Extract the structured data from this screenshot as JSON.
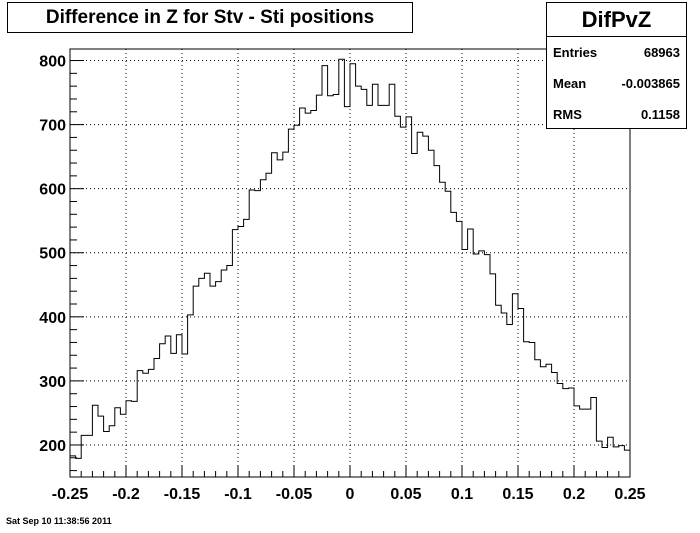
{
  "title": "Difference in Z for Stv - Sti positions",
  "stats": {
    "name": "DifPvZ",
    "entries_label": "Entries",
    "entries_value": "68963",
    "mean_label": "Mean",
    "mean_value": "-0.003865",
    "rms_label": "RMS",
    "rms_value": "0.1158"
  },
  "timestamp": "Sat Sep 10 11:38:56 2011",
  "chart_data": {
    "type": "histogram",
    "xlim": [
      -0.25,
      0.25
    ],
    "ylim": [
      150,
      818
    ],
    "bin_width": 0.005,
    "x_ticks": [
      -0.25,
      -0.2,
      -0.15,
      -0.1,
      -0.05,
      0,
      0.05,
      0.1,
      0.15,
      0.2,
      0.25
    ],
    "x_tick_labels": [
      "-0.25",
      "-0.2",
      "-0.15",
      "-0.1",
      "-0.05",
      "0",
      "0.05",
      "0.1",
      "0.15",
      "0.2",
      "0.25"
    ],
    "y_ticks": [
      200,
      300,
      400,
      500,
      600,
      700,
      800
    ],
    "y_tick_labels": [
      "200",
      "300",
      "400",
      "500",
      "600",
      "700",
      "800"
    ],
    "grid": true,
    "values": [
      183,
      179,
      215,
      215,
      262,
      245,
      221,
      230,
      258,
      248,
      269,
      268,
      316,
      312,
      318,
      335,
      358,
      370,
      343,
      372,
      342,
      403,
      448,
      460,
      468,
      448,
      455,
      473,
      480,
      536,
      541,
      552,
      598,
      597,
      614,
      624,
      656,
      645,
      657,
      693,
      699,
      726,
      718,
      722,
      746,
      792,
      745,
      747,
      802,
      728,
      795,
      760,
      755,
      730,
      763,
      730,
      730,
      763,
      713,
      696,
      712,
      655,
      688,
      682,
      660,
      636,
      610,
      596,
      563,
      549,
      505,
      537,
      498,
      503,
      497,
      467,
      418,
      406,
      388,
      436,
      413,
      361,
      360,
      333,
      322,
      326,
      313,
      296,
      288,
      289,
      261,
      256,
      256,
      274,
      206,
      196,
      212,
      197,
      199,
      192
    ]
  }
}
